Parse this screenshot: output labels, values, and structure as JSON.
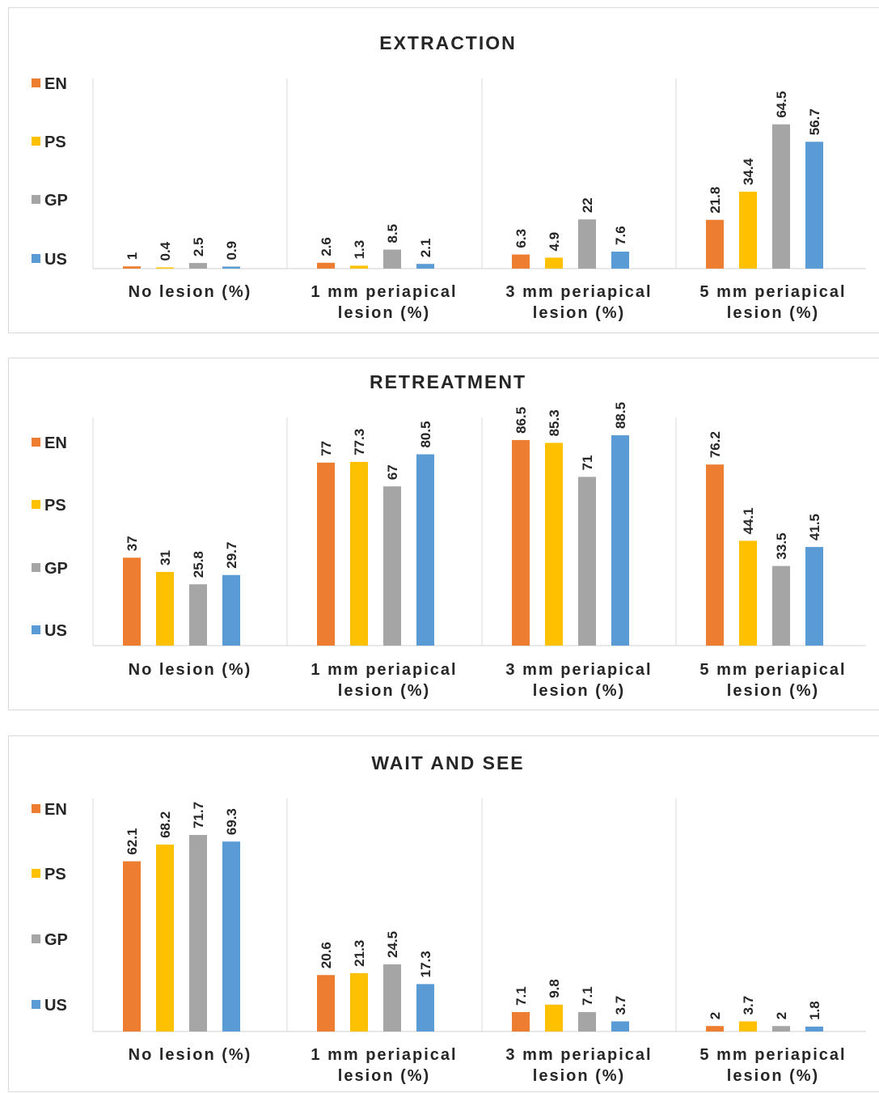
{
  "colors": {
    "EN": "#ED7D31",
    "PS": "#FFC000",
    "GP": "#A5A5A5",
    "US": "#5B9BD5",
    "axis": "#d9d9d9",
    "text": "#262626"
  },
  "legend": [
    "EN",
    "PS",
    "GP",
    "US"
  ],
  "categories": [
    [
      "No lesion (%)"
    ],
    [
      "1 mm periapical",
      "lesion (%)"
    ],
    [
      "3 mm periapical",
      "lesion (%)"
    ],
    [
      "5 mm periapical",
      "lesion (%)"
    ]
  ],
  "chart_data": [
    {
      "type": "bar",
      "title": "EXTRACTION",
      "categories": [
        "No lesion (%)",
        "1 mm periapical lesion (%)",
        "3 mm periapical lesion (%)",
        "5 mm periapical lesion (%)"
      ],
      "series": [
        {
          "name": "EN",
          "values": [
            1,
            2.6,
            6.3,
            21.8
          ]
        },
        {
          "name": "PS",
          "values": [
            0.4,
            1.3,
            4.9,
            34.4
          ]
        },
        {
          "name": "GP",
          "values": [
            2.5,
            8.5,
            22,
            64.5
          ]
        },
        {
          "name": "US",
          "values": [
            0.9,
            2.1,
            7.6,
            56.7
          ]
        }
      ],
      "ylim": [
        0,
        85
      ],
      "legend_position": "left"
    },
    {
      "type": "bar",
      "title": "RETREATMENT",
      "categories": [
        "No lesion (%)",
        "1 mm periapical lesion (%)",
        "3 mm periapical lesion (%)",
        "5 mm periapical lesion (%)"
      ],
      "series": [
        {
          "name": "EN",
          "values": [
            37,
            77,
            86.5,
            76.2
          ]
        },
        {
          "name": "PS",
          "values": [
            31,
            77.3,
            85.3,
            44.1
          ]
        },
        {
          "name": "GP",
          "values": [
            25.8,
            67,
            71,
            33.5
          ]
        },
        {
          "name": "US",
          "values": [
            29.7,
            80.5,
            88.5,
            41.5
          ]
        }
      ],
      "ylim": [
        0,
        96
      ],
      "legend_position": "left"
    },
    {
      "type": "bar",
      "title": "WAIT AND SEE",
      "categories": [
        "No lesion (%)",
        "1 mm periapical lesion (%)",
        "3 mm periapical lesion (%)",
        "5 mm periapical lesion (%)"
      ],
      "series": [
        {
          "name": "EN",
          "values": [
            62.1,
            20.6,
            7.1,
            2
          ]
        },
        {
          "name": "PS",
          "values": [
            68.2,
            21.3,
            9.8,
            3.7
          ]
        },
        {
          "name": "GP",
          "values": [
            71.7,
            24.5,
            7.1,
            2
          ]
        },
        {
          "name": "US",
          "values": [
            69.3,
            17.3,
            3.7,
            1.8
          ]
        }
      ],
      "ylim": [
        0,
        85
      ],
      "legend_position": "left"
    }
  ]
}
